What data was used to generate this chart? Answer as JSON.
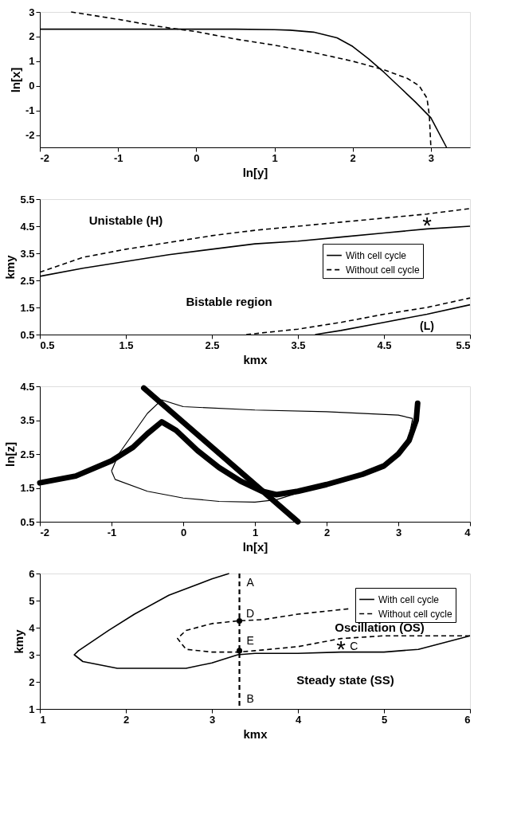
{
  "chart_data": [
    {
      "type": "line",
      "xlabel": "ln[y]",
      "ylabel": "ln[x]",
      "xlim": [
        -2,
        3.5
      ],
      "ylim": [
        -2.5,
        3
      ],
      "xticks": [
        -2,
        -1,
        0,
        1,
        2,
        3
      ],
      "yticks": [
        -2,
        -1,
        0,
        1,
        2,
        3
      ],
      "grid": false,
      "legend": false,
      "series": [
        {
          "color": "#000000",
          "line_style": "solid",
          "x": [
            -2,
            -1,
            0,
            0.5,
            1,
            1.2,
            1.5,
            1.8,
            2.0,
            2.2,
            2.4,
            2.6,
            2.8,
            3.0,
            3.2
          ],
          "values": [
            2.3,
            2.3,
            2.3,
            2.3,
            2.28,
            2.26,
            2.18,
            1.95,
            1.6,
            1.1,
            0.55,
            -0.05,
            -0.65,
            -1.3,
            -2.5
          ]
        },
        {
          "color": "#000000",
          "line_style": "dashed",
          "x": [
            -1.6,
            -1,
            -0.5,
            0,
            0.5,
            1,
            1.5,
            2,
            2.4,
            2.7,
            2.85,
            2.95,
            2.98,
            3.0
          ],
          "values": [
            3.0,
            2.7,
            2.42,
            2.2,
            1.9,
            1.65,
            1.35,
            1.0,
            0.65,
            0.3,
            0,
            -0.5,
            -1.2,
            -2.5
          ]
        }
      ]
    },
    {
      "type": "line",
      "xlabel": "kmx",
      "ylabel": "kmy",
      "xlim": [
        0.5,
        5.5
      ],
      "ylim": [
        0.5,
        5.5
      ],
      "xticks": [
        0.5,
        1.5,
        2.5,
        3.5,
        4.5,
        5.5
      ],
      "yticks": [
        0.5,
        1.5,
        2.5,
        3.5,
        4.5,
        5.5
      ],
      "grid": false,
      "legend": "right",
      "annotations": [
        "Unistable (H)",
        "Bistable region",
        "(L)",
        "*"
      ],
      "series": [
        {
          "name": "With cell cycle",
          "color": "#000000",
          "line_style": "solid",
          "x": [
            0.5,
            1,
            1.5,
            2,
            2.5,
            3,
            3.5,
            4,
            4.5,
            5,
            5.5
          ],
          "values": [
            2.65,
            2.95,
            3.2,
            3.45,
            3.65,
            3.85,
            3.95,
            4.1,
            4.25,
            4.4,
            4.5
          ]
        },
        {
          "name": "Without cell cycle",
          "color": "#000000",
          "line_style": "dashed",
          "x": [
            0.5,
            1,
            1.5,
            2,
            2.5,
            3,
            3.5,
            4,
            4.5,
            5,
            5.5
          ],
          "values": [
            2.8,
            3.35,
            3.65,
            3.9,
            4.15,
            4.35,
            4.5,
            4.65,
            4.8,
            4.95,
            5.15
          ]
        },
        {
          "color": "#000000",
          "line_style": "solid",
          "x": [
            3.7,
            4,
            4.5,
            5,
            5.5
          ],
          "values": [
            0.5,
            0.65,
            0.95,
            1.25,
            1.6
          ]
        },
        {
          "color": "#000000",
          "line_style": "dashed",
          "x": [
            2.9,
            3.5,
            4,
            4.5,
            5,
            5.5
          ],
          "values": [
            0.5,
            0.7,
            0.95,
            1.25,
            1.5,
            1.85
          ]
        }
      ]
    },
    {
      "type": "line",
      "xlabel": "ln[x]",
      "ylabel": "ln[z]",
      "xlim": [
        -2,
        4
      ],
      "ylim": [
        0.5,
        4.5
      ],
      "xticks": [
        -2,
        -1,
        0,
        1,
        2,
        3,
        4
      ],
      "yticks": [
        0.5,
        1.5,
        2.5,
        3.5,
        4.5
      ],
      "grid": false,
      "legend": false,
      "series": [
        {
          "color": "#000000",
          "line_style": "solid",
          "x": [
            -2,
            -1.5,
            -1,
            -0.7,
            -0.5,
            -0.3,
            -0.1,
            0.2,
            0.5,
            0.8,
            1.1,
            1.3,
            1.6,
            2,
            2.5,
            2.8,
            3.0,
            3.15,
            3.25,
            3.27
          ],
          "values": [
            1.65,
            1.85,
            2.3,
            2.7,
            3.1,
            3.45,
            3.2,
            2.6,
            2.1,
            1.7,
            1.4,
            1.3,
            1.4,
            1.6,
            1.9,
            2.15,
            2.5,
            2.9,
            3.5,
            4.0
          ]
        },
        {
          "color": "#000000",
          "line_style": "solid",
          "x": [
            -0.55,
            1.6
          ],
          "values": [
            4.45,
            0.5
          ]
        },
        {
          "color": "#000000",
          "line_style": "solid",
          "x": [
            -1,
            -0.95,
            -0.5,
            0,
            0.5,
            1,
            1.3,
            1.6,
            2,
            2.5,
            3,
            3.15,
            3.2
          ],
          "values": [
            2.0,
            1.75,
            1.4,
            1.2,
            1.1,
            1.08,
            1.15,
            1.35,
            1.55,
            1.85,
            2.45,
            3.0,
            3.55
          ]
        },
        {
          "color": "#000000",
          "line_style": "solid",
          "x": [
            -1,
            -0.9,
            -0.7,
            -0.5,
            -0.3,
            0,
            1,
            2,
            3.0,
            3.2
          ],
          "values": [
            2.0,
            2.5,
            3.1,
            3.7,
            4.1,
            3.9,
            3.8,
            3.75,
            3.65,
            3.55
          ]
        }
      ]
    },
    {
      "type": "line",
      "xlabel": "kmx",
      "ylabel": "kmy",
      "xlim": [
        1,
        6
      ],
      "ylim": [
        1,
        6
      ],
      "xticks": [
        1,
        2,
        3,
        4,
        5,
        6
      ],
      "yticks": [
        1,
        2,
        3,
        4,
        5,
        6
      ],
      "grid": false,
      "legend": "top right",
      "ref_lines": [
        {
          "axis": "x",
          "value": 3.32,
          "line_style": "dashed",
          "color": "#000000"
        }
      ],
      "annotations": [
        "A",
        "D",
        "E",
        "B",
        "*",
        "C",
        "Oscillation   (OS)",
        "Steady state   (SS)"
      ],
      "series": [
        {
          "name": "With cell cycle",
          "color": "#000000",
          "line_style": "solid",
          "x": [
            3.2,
            3,
            2.5,
            2.1,
            1.8,
            1.45,
            1.4,
            1.5,
            1.9,
            2.7,
            3.0,
            3.3,
            3.5,
            4,
            4.5,
            5,
            5.4,
            6
          ],
          "values": [
            6,
            5.8,
            5.2,
            4.5,
            3.9,
            3.15,
            3.0,
            2.75,
            2.5,
            2.5,
            2.7,
            3.0,
            3.05,
            3.05,
            3.1,
            3.1,
            3.2,
            3.7
          ]
        },
        {
          "name": "Without cell cycle",
          "color": "#000000",
          "line_style": "dashed",
          "x": [
            6,
            5,
            4.5,
            4,
            3.5,
            3.3,
            3,
            2.7,
            2.6,
            2.7,
            3,
            3.3,
            3.6,
            4,
            4.6
          ],
          "values": [
            3.7,
            3.7,
            3.6,
            3.3,
            3.15,
            3.1,
            3.1,
            3.2,
            3.6,
            3.9,
            4.15,
            4.25,
            4.3,
            4.5,
            4.7
          ]
        },
        {
          "type": "scatter",
          "marker": "circle",
          "color": "#000000",
          "x": [
            3.32,
            3.32
          ],
          "values": [
            4.25,
            3.15
          ]
        }
      ]
    }
  ]
}
